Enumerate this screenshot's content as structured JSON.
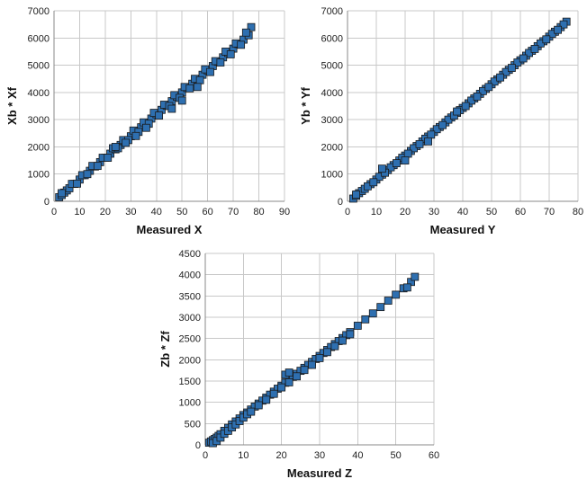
{
  "chart_data": [
    {
      "type": "scatter",
      "xlabel": "Measured X",
      "ylabel": "Xb * Xf",
      "xlim": [
        0,
        90
      ],
      "ylim": [
        0,
        7000
      ],
      "xticks": [
        0,
        10,
        20,
        30,
        40,
        50,
        60,
        70,
        80,
        90
      ],
      "yticks": [
        0,
        1000,
        2000,
        3000,
        4000,
        5000,
        6000,
        7000
      ],
      "grid": true,
      "legend": "none",
      "marker_color": "#2e6fb0",
      "series": [
        {
          "x": [
            2,
            3,
            4,
            5,
            6,
            8,
            10,
            12,
            14,
            16,
            18,
            20,
            22,
            24,
            26,
            28,
            30,
            32,
            34,
            36,
            38,
            40,
            42,
            44,
            46,
            48,
            50,
            52,
            54,
            56,
            58,
            60,
            62,
            64,
            66,
            68,
            70,
            72,
            74,
            76,
            77,
            3,
            7,
            11,
            15,
            19,
            23,
            27,
            31,
            35,
            39,
            43,
            47,
            51,
            55,
            59,
            63,
            67,
            71,
            75,
            9,
            13,
            17,
            21,
            25,
            29,
            33,
            37,
            41,
            45,
            49,
            53,
            57,
            61,
            65,
            69,
            73,
            24,
            28,
            32,
            36,
            46,
            50,
            56
          ],
          "y": [
            150,
            230,
            320,
            400,
            480,
            640,
            800,
            960,
            1120,
            1280,
            1440,
            1600,
            1750,
            1910,
            2070,
            2230,
            2390,
            2560,
            2720,
            2880,
            3040,
            3200,
            3360,
            3520,
            3680,
            3840,
            4000,
            4160,
            4320,
            4480,
            4650,
            4810,
            4970,
            5130,
            5290,
            5450,
            5610,
            5780,
            5940,
            6100,
            6400,
            300,
            640,
            960,
            1300,
            1600,
            1950,
            2250,
            2600,
            2900,
            3250,
            3550,
            3900,
            4200,
            4500,
            4850,
            5150,
            5500,
            5800,
            6200,
            650,
            1000,
            1300,
            1600,
            1950,
            2250,
            2550,
            2850,
            3150,
            3500,
            3800,
            4150,
            4450,
            4750,
            5100,
            5400,
            5750,
            2000,
            2150,
            2400,
            2700,
            3400,
            3700,
            4200
          ]
        }
      ]
    },
    {
      "type": "scatter",
      "xlabel": "Measured Y",
      "ylabel": "Yb * Yf",
      "xlim": [
        0,
        80
      ],
      "ylim": [
        0,
        7000
      ],
      "xticks": [
        0,
        10,
        20,
        30,
        40,
        50,
        60,
        70,
        80
      ],
      "yticks": [
        0,
        1000,
        2000,
        3000,
        4000,
        5000,
        6000,
        7000
      ],
      "grid": true,
      "legend": "none",
      "marker_color": "#2e6fb0",
      "series": [
        {
          "x": [
            2,
            3,
            4,
            5,
            6,
            8,
            10,
            12,
            14,
            16,
            18,
            20,
            22,
            24,
            26,
            28,
            30,
            32,
            34,
            36,
            38,
            40,
            42,
            44,
            46,
            48,
            50,
            52,
            54,
            56,
            58,
            60,
            62,
            64,
            66,
            68,
            70,
            72,
            74,
            76,
            3,
            7,
            11,
            15,
            19,
            23,
            27,
            31,
            35,
            39,
            43,
            47,
            51,
            55,
            59,
            63,
            67,
            71,
            75,
            9,
            13,
            17,
            21,
            25,
            29,
            33,
            37,
            41,
            45,
            49,
            53,
            57,
            61,
            65,
            69,
            73,
            12,
            20,
            28,
            38
          ],
          "y": [
            100,
            200,
            300,
            380,
            460,
            630,
            800,
            980,
            1150,
            1330,
            1500,
            1680,
            1850,
            2030,
            2200,
            2380,
            2550,
            2730,
            2900,
            3080,
            3250,
            3430,
            3600,
            3780,
            3950,
            4130,
            4300,
            4480,
            4650,
            4830,
            5000,
            5180,
            5350,
            5530,
            5700,
            5880,
            6050,
            6230,
            6400,
            6600,
            250,
            550,
            900,
            1250,
            1600,
            1950,
            2300,
            2650,
            3000,
            3350,
            3700,
            4050,
            4400,
            4750,
            5100,
            5450,
            5800,
            6150,
            6500,
            700,
            1050,
            1400,
            1750,
            2100,
            2450,
            2800,
            3150,
            3500,
            3850,
            4200,
            4550,
            4900,
            5250,
            5600,
            5950,
            6300,
            1200,
            1500,
            2200,
            3300
          ]
        }
      ]
    },
    {
      "type": "scatter",
      "xlabel": "Measured Z",
      "ylabel": "Zb * Zf",
      "xlim": [
        0,
        60
      ],
      "ylim": [
        0,
        4500
      ],
      "xticks": [
        0,
        10,
        20,
        30,
        40,
        50,
        60
      ],
      "yticks": [
        0,
        500,
        1000,
        1500,
        2000,
        2500,
        3000,
        3500,
        4000,
        4500
      ],
      "grid": true,
      "legend": "none",
      "marker_color": "#2e6fb0",
      "series": [
        {
          "x": [
            1,
            1.5,
            2,
            2.5,
            3,
            3.5,
            4,
            5,
            6,
            7,
            8,
            9,
            10,
            11,
            12,
            13,
            14,
            15,
            16,
            17,
            18,
            19,
            20,
            21,
            22,
            23,
            24,
            25,
            26,
            27,
            28,
            29,
            30,
            31,
            32,
            33,
            34,
            35,
            36,
            37,
            38,
            40,
            42,
            44,
            46,
            48,
            50,
            52,
            54,
            55,
            2,
            3,
            4,
            5,
            6,
            7,
            8,
            9,
            10,
            11,
            12,
            14,
            16,
            18,
            20,
            22,
            24,
            26,
            28,
            30,
            32,
            34,
            36,
            38,
            53,
            21,
            22
          ],
          "y": [
            50,
            80,
            110,
            140,
            170,
            210,
            250,
            330,
            400,
            480,
            550,
            620,
            700,
            760,
            830,
            900,
            970,
            1040,
            1110,
            1180,
            1250,
            1320,
            1390,
            1460,
            1530,
            1600,
            1670,
            1740,
            1810,
            1880,
            1950,
            2020,
            2090,
            2160,
            2230,
            2300,
            2370,
            2440,
            2510,
            2580,
            2650,
            2800,
            2950,
            3090,
            3240,
            3390,
            3530,
            3680,
            3830,
            3950,
            40,
            90,
            170,
            260,
            330,
            410,
            480,
            560,
            640,
            720,
            780,
            930,
            1060,
            1200,
            1350,
            1470,
            1610,
            1760,
            1880,
            2040,
            2180,
            2320,
            2450,
            2600,
            3700,
            1650,
            1700
          ]
        }
      ]
    }
  ]
}
